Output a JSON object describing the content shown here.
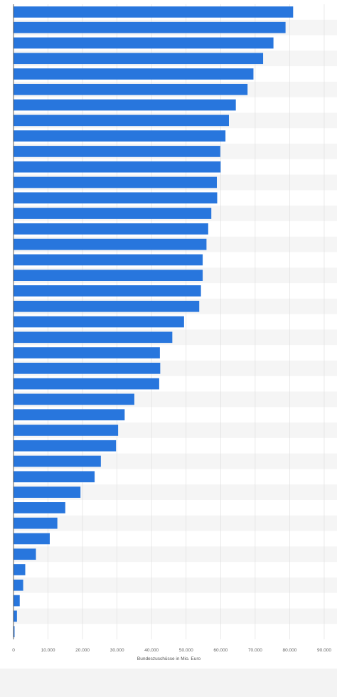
{
  "chart_data": {
    "type": "bar",
    "orientation": "horizontal",
    "values": [
      81000,
      78800,
      75300,
      72300,
      69500,
      67800,
      64400,
      62400,
      61400,
      59900,
      60000,
      58900,
      59000,
      57300,
      56400,
      55900,
      54800,
      54800,
      54300,
      53800,
      49400,
      46000,
      42400,
      42500,
      42200,
      35000,
      32200,
      30300,
      29700,
      25300,
      23500,
      19400,
      15000,
      12700,
      10500,
      6500,
      3400,
      2800,
      1800,
      1000,
      300
    ],
    "xlabel": "Bundeszuschüsse in Mio. Euro",
    "ylabel": "",
    "xlim": [
      0,
      90000
    ],
    "xticks": [
      0,
      10000,
      20000,
      30000,
      40000,
      50000,
      60000,
      70000,
      80000,
      90000
    ],
    "tick_labels": [
      "0",
      "10.000",
      "20.000",
      "30.000",
      "40.000",
      "50.000",
      "60.000",
      "70.000",
      "80.000",
      "90.000"
    ],
    "grid": true,
    "legend": "none",
    "colors": {
      "bar": "#2876dd",
      "band_alt": "#f5f5f5",
      "grid": "#dddddd",
      "axis": "#333333",
      "background": "#f3f3f3",
      "panel": "#ffffff"
    }
  }
}
